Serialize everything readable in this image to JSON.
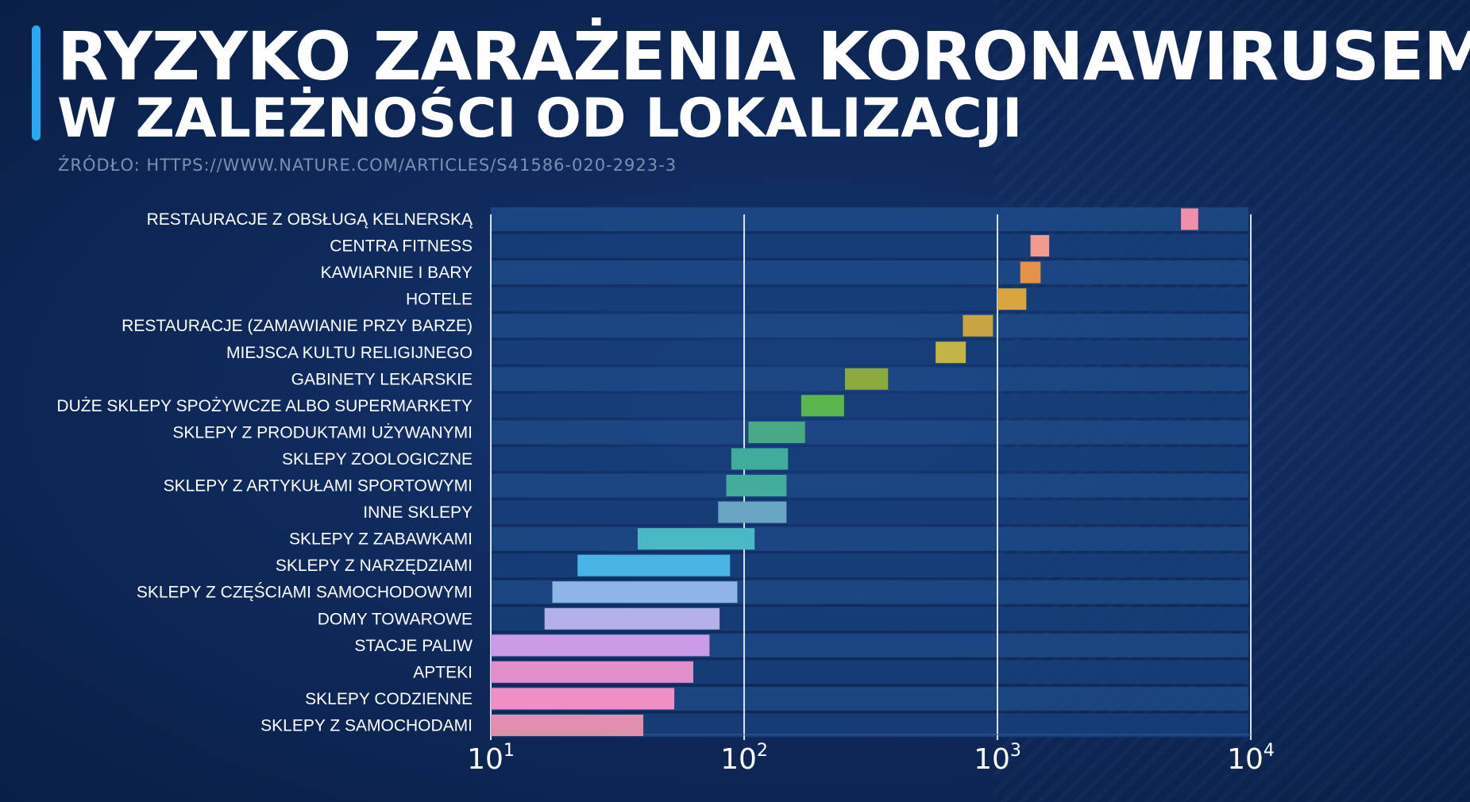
{
  "header": {
    "title": "RYZYKO ZARAŻENIA KORONAWIRUSEM",
    "subtitle": "W ZALEŻNOŚCI OD LOKALIZACJI",
    "source": "ŹRÓDŁO: HTTPS://WWW.NATURE.COM/ARTICLES/S41586-020-2923-3"
  },
  "chart_data": {
    "type": "bar",
    "orientation": "horizontal-range",
    "x_scale": "log",
    "xlim": [
      10,
      10000
    ],
    "x_ticks": [
      {
        "value": 10,
        "base": "10",
        "exp": "1"
      },
      {
        "value": 100,
        "base": "10",
        "exp": "2"
      },
      {
        "value": 1000,
        "base": "10",
        "exp": "3"
      },
      {
        "value": 10000,
        "base": "10",
        "exp": "4"
      }
    ],
    "grid": "vertical",
    "categories": [
      "RESTAURACJE Z OBSŁUGĄ KELNERSKĄ",
      "CENTRA FITNESS",
      "KAWIARNIE I BARY",
      "HOTELE",
      "RESTAURACJE (ZAMAWIANIE PRZY BARZE)",
      "MIEJSCA KULTU RELIGIJNEGO",
      "GABINETY LEKARSKIE",
      "DUŻE SKLEPY SPOŻYWCZE ALBO SUPERMARKETY",
      "SKLEPY Z PRODUKTAMI UŻYWANYMI",
      "SKLEPY ZOOLOGICZNE",
      "SKLEPY Z ARTYKUŁAMI SPORTOWYMI",
      "INNE SKLEPY",
      "SKLEPY Z ZABAWKAMI",
      "SKLEPY Z NARZĘDZIAMI",
      "SKLEPY Z CZĘŚCIAMI SAMOCHODOWYMI",
      "DOMY TOWAROWE",
      "STACJE PALIW",
      "APTEKI",
      "SKLEPY CODZIENNE",
      "SKLEPY Z SAMOCHODAMI"
    ],
    "ranges": [
      [
        5300,
        6200
      ],
      [
        1350,
        1600
      ],
      [
        1230,
        1480
      ],
      [
        1000,
        1300
      ],
      [
        730,
        960
      ],
      [
        570,
        750
      ],
      [
        250,
        370
      ],
      [
        168,
        248
      ],
      [
        104,
        174
      ],
      [
        89,
        149
      ],
      [
        85,
        147
      ],
      [
        79,
        147
      ],
      [
        38,
        110
      ],
      [
        22,
        88
      ],
      [
        17.5,
        94
      ],
      [
        16.3,
        80
      ],
      [
        10,
        73
      ],
      [
        10,
        63
      ],
      [
        10,
        53
      ],
      [
        10,
        40
      ]
    ],
    "colors": [
      "#f18ea8",
      "#f19a8e",
      "#e5914a",
      "#d7a43e",
      "#c9a445",
      "#c2b445",
      "#8daa3e",
      "#5ab64e",
      "#4aa985",
      "#40ad9c",
      "#44ac9c",
      "#68a6c4",
      "#4ab9c5",
      "#4ab4e6",
      "#8eb4e8",
      "#b6b0e8",
      "#c99ae6",
      "#e08fca",
      "#f08ec6",
      "#e08fae"
    ]
  }
}
